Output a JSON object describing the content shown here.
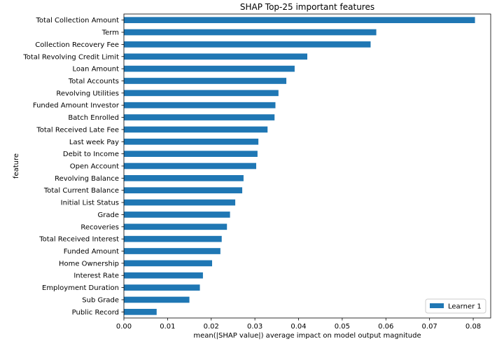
{
  "chart_data": {
    "type": "bar",
    "orientation": "horizontal",
    "title": "SHAP Top-25 important features",
    "xlabel": "mean(|SHAP value|) average impact on model output magnitude",
    "ylabel": "feature",
    "xlim": [
      0,
      0.084
    ],
    "xticks": [
      "0.00",
      "0.01",
      "0.02",
      "0.03",
      "0.04",
      "0.05",
      "0.06",
      "0.07",
      "0.08"
    ],
    "grid": false,
    "legend_position": "lower-right",
    "bar_color": "#1f77b4",
    "categories": [
      "Total Collection Amount",
      "Term",
      "Collection Recovery Fee",
      "Total Revolving Credit Limit",
      "Loan Amount",
      "Total Accounts",
      "Revolving Utilities",
      "Funded Amount Investor",
      "Batch Enrolled",
      "Total Received Late Fee",
      "Last week Pay",
      "Debit to Income",
      "Open Account",
      "Revolving Balance",
      "Total Current Balance",
      "Initial List Status",
      "Grade",
      "Recoveries",
      "Total Received Interest",
      "Funded Amount",
      "Home Ownership",
      "Interest Rate",
      "Employment Duration",
      "Sub Grade",
      "Public Record"
    ],
    "series": [
      {
        "name": "Learner 1",
        "values": [
          0.0804,
          0.0578,
          0.0565,
          0.042,
          0.0391,
          0.0372,
          0.0354,
          0.0347,
          0.0345,
          0.0329,
          0.0308,
          0.0306,
          0.0303,
          0.0274,
          0.0271,
          0.0255,
          0.0243,
          0.0236,
          0.0224,
          0.0221,
          0.0202,
          0.0181,
          0.0174,
          0.015,
          0.0075
        ]
      }
    ]
  }
}
